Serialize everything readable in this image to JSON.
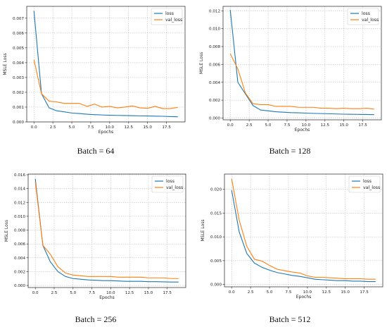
{
  "chart_data": [
    {
      "type": "line",
      "caption": "Batch = 64",
      "xlabel": "Epochs",
      "ylabel": "MSLE Loss",
      "xlim": [
        -0.95,
        19.95
      ],
      "ylim": [
        0,
        0.0078
      ],
      "xticks": [
        0.0,
        2.5,
        5.0,
        7.5,
        10.0,
        12.5,
        15.0,
        17.5
      ],
      "xtick_labels": [
        "0.0",
        "2.5",
        "5.0",
        "7.5",
        "10.0",
        "12.5",
        "15.0",
        "17.5"
      ],
      "yticks": [
        0,
        0.001,
        0.002,
        0.003,
        0.004,
        0.005,
        0.006,
        0.007
      ],
      "ytick_labels": [
        "0.000",
        "0.001",
        "0.002",
        "0.003",
        "0.004",
        "0.005",
        "0.006",
        "0.007"
      ],
      "grid": true,
      "legend": "top-right",
      "x": [
        0,
        1,
        2,
        3,
        4,
        5,
        6,
        7,
        8,
        9,
        10,
        11,
        12,
        13,
        14,
        15,
        16,
        17,
        18,
        19
      ],
      "series": [
        {
          "name": "loss",
          "color": "#1f77b4",
          "values": [
            0.0075,
            0.0019,
            0.00095,
            0.00075,
            0.00068,
            0.0006,
            0.00057,
            0.00052,
            0.00049,
            0.00047,
            0.00045,
            0.00044,
            0.00043,
            0.00042,
            0.00041,
            0.0004,
            0.00039,
            0.00038,
            0.00036,
            0.00035
          ]
        },
        {
          "name": "val_loss",
          "color": "#ff7f0e",
          "values": [
            0.0042,
            0.0019,
            0.0014,
            0.00135,
            0.00125,
            0.00125,
            0.00125,
            0.00105,
            0.0012,
            0.001,
            0.00105,
            0.00095,
            0.001,
            0.00108,
            0.00095,
            0.00092,
            0.00105,
            0.0009,
            0.0009,
            0.00098
          ]
        }
      ]
    },
    {
      "type": "line",
      "caption": "Batch = 128",
      "xlabel": "Epochs",
      "ylabel": "MSLE Loss",
      "xlim": [
        -0.95,
        19.95
      ],
      "ylim": [
        -0.0002,
        0.0125
      ],
      "xticks": [
        0.0,
        2.5,
        5.0,
        7.5,
        10.0,
        12.5,
        15.0,
        17.5
      ],
      "xtick_labels": [
        "0.0",
        "2.5",
        "5.0",
        "7.5",
        "10.0",
        "12.5",
        "15.0",
        "17.5"
      ],
      "yticks": [
        0,
        0.002,
        0.004,
        0.006,
        0.008,
        0.01,
        0.012
      ],
      "ytick_labels": [
        "0.000",
        "0.002",
        "0.004",
        "0.006",
        "0.008",
        "0.010",
        "0.012"
      ],
      "grid": true,
      "legend": "top-right",
      "x": [
        0,
        1,
        2,
        3,
        4,
        5,
        6,
        7,
        8,
        9,
        10,
        11,
        12,
        13,
        14,
        15,
        16,
        17,
        18,
        19
      ],
      "series": [
        {
          "name": "loss",
          "color": "#1f77b4",
          "values": [
            0.0121,
            0.004,
            0.0027,
            0.0014,
            0.0009,
            0.0008,
            0.0007,
            0.00065,
            0.0006,
            0.00058,
            0.00055,
            0.00052,
            0.0005,
            0.00048,
            0.00045,
            0.00043,
            0.00042,
            0.00041,
            0.0004,
            0.00038
          ]
        },
        {
          "name": "val_loss",
          "color": "#ff7f0e",
          "values": [
            0.0072,
            0.0055,
            0.0028,
            0.0016,
            0.0015,
            0.0015,
            0.0013,
            0.0013,
            0.0013,
            0.0012,
            0.0012,
            0.0012,
            0.0011,
            0.0011,
            0.00105,
            0.0011,
            0.00105,
            0.00105,
            0.0011,
            0.001
          ]
        }
      ]
    },
    {
      "type": "line",
      "caption": "Batch = 256",
      "xlabel": "Epochs",
      "ylabel": "MSLE Loss",
      "xlim": [
        -0.95,
        19.95
      ],
      "ylim": [
        -0.0003,
        0.0161
      ],
      "xticks": [
        0.0,
        2.5,
        5.0,
        7.5,
        10.0,
        12.5,
        15.0,
        17.5
      ],
      "xtick_labels": [
        "0.0",
        "2.5",
        "5.0",
        "7.5",
        "10.0",
        "12.5",
        "15.0",
        "17.5"
      ],
      "yticks": [
        0,
        0.002,
        0.004,
        0.006,
        0.008,
        0.01,
        0.012,
        0.014,
        0.016
      ],
      "ytick_labels": [
        "0.000",
        "0.002",
        "0.004",
        "0.006",
        "0.008",
        "0.010",
        "0.012",
        "0.014",
        "0.016"
      ],
      "grid": true,
      "legend": "top-right",
      "x": [
        0,
        1,
        2,
        3,
        4,
        5,
        6,
        7,
        8,
        9,
        10,
        11,
        12,
        13,
        14,
        15,
        16,
        17,
        18,
        19
      ],
      "series": [
        {
          "name": "loss",
          "color": "#1f77b4",
          "values": [
            0.0154,
            0.0058,
            0.0034,
            0.002,
            0.0013,
            0.001,
            0.0009,
            0.0008,
            0.00075,
            0.0007,
            0.0007,
            0.00065,
            0.0006,
            0.0006,
            0.0006,
            0.00055,
            0.00055,
            0.00052,
            0.0005,
            0.0005
          ]
        },
        {
          "name": "val_loss",
          "color": "#ff7f0e",
          "values": [
            0.015,
            0.0058,
            0.0045,
            0.0027,
            0.0018,
            0.0015,
            0.0014,
            0.0013,
            0.0013,
            0.0013,
            0.0013,
            0.0012,
            0.0012,
            0.0012,
            0.0012,
            0.0011,
            0.0011,
            0.0011,
            0.001,
            0.001
          ]
        }
      ]
    },
    {
      "type": "line",
      "caption": "Batch = 512",
      "xlabel": "Epochs",
      "ylabel": "MSLE Loss",
      "xlim": [
        -0.95,
        19.95
      ],
      "ylim": [
        -0.0005,
        0.0232
      ],
      "xticks": [
        0.0,
        2.5,
        5.0,
        7.5,
        10.0,
        12.5,
        15.0,
        17.5
      ],
      "xtick_labels": [
        "0.0",
        "2.5",
        "5.0",
        "7.5",
        "10.0",
        "12.5",
        "15.0",
        "17.5"
      ],
      "yticks": [
        0,
        0.005,
        0.01,
        0.015,
        0.02
      ],
      "ytick_labels": [
        "0.000",
        "0.005",
        "0.010",
        "0.015",
        "0.020"
      ],
      "grid": true,
      "legend": "top-right",
      "x": [
        0,
        1,
        2,
        3,
        4,
        5,
        6,
        7,
        8,
        9,
        10,
        11,
        12,
        13,
        14,
        15,
        16,
        17,
        18,
        19
      ],
      "series": [
        {
          "name": "loss",
          "color": "#1f77b4",
          "values": [
            0.0198,
            0.011,
            0.0065,
            0.0045,
            0.0036,
            0.003,
            0.0025,
            0.0022,
            0.0019,
            0.0017,
            0.0014,
            0.0011,
            0.001,
            0.0009,
            0.0008,
            0.0008,
            0.0007,
            0.0007,
            0.0006,
            0.0006
          ]
        },
        {
          "name": "val_loss",
          "color": "#ff7f0e",
          "values": [
            0.0222,
            0.0135,
            0.008,
            0.0053,
            0.0049,
            0.004,
            0.0032,
            0.0029,
            0.0026,
            0.0024,
            0.0018,
            0.0015,
            0.0015,
            0.0014,
            0.0013,
            0.0012,
            0.0012,
            0.0012,
            0.0011,
            0.0011
          ]
        }
      ]
    }
  ]
}
